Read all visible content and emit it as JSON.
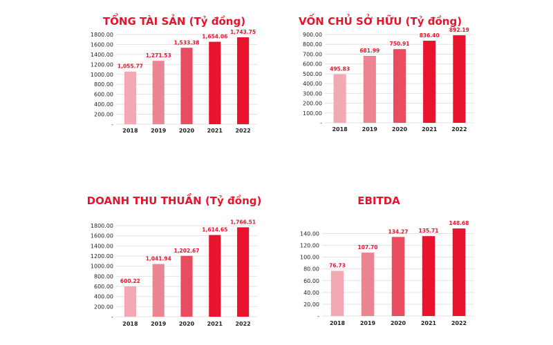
{
  "chart_data": [
    {
      "type": "bar",
      "title": "TỔNG TÀI SẢN (Tỷ đồng)",
      "categories": [
        "2018",
        "2019",
        "2020",
        "2021",
        "2022"
      ],
      "values": [
        1055.77,
        1271.53,
        1533.38,
        1654.06,
        1743.75
      ],
      "value_labels": [
        "1,055.77",
        "1,271.53",
        "1,533.38",
        "1,654.06",
        "1,743.75"
      ],
      "y_ticks": [
        "-",
        "200.00",
        "400.00",
        "600.00",
        "800.00",
        "1000.00",
        "1200.00",
        "1400.00",
        "1600.00",
        "1800.00"
      ],
      "ylim": [
        0,
        1800
      ],
      "grid": true
    },
    {
      "type": "bar",
      "title": "VỐN CHỦ SỞ HỮU (Tỷ đồng)",
      "categories": [
        "2018",
        "2019",
        "2020",
        "2021",
        "2022"
      ],
      "values": [
        495.83,
        681.99,
        750.91,
        836.4,
        892.19
      ],
      "value_labels": [
        "495.83",
        "681.99",
        "750.91",
        "836.40",
        "892.19"
      ],
      "y_ticks": [
        "-",
        "100.00",
        "200.00",
        "300.00",
        "400.00",
        "500.00",
        "600.00",
        "700.00",
        "800.00",
        "900.00"
      ],
      "ylim": [
        0,
        900
      ],
      "grid": true
    },
    {
      "type": "bar",
      "title": "DOANH THU THUẦN (Tỷ đồng)",
      "categories": [
        "2018",
        "2019",
        "2020",
        "2021",
        "2022"
      ],
      "values": [
        600.22,
        1041.94,
        1202.67,
        1614.65,
        1766.51
      ],
      "value_labels": [
        "600.22",
        "1,041.94",
        "1,202.67",
        "1,614.65",
        "1,766.51"
      ],
      "y_ticks": [
        "-",
        "200.00",
        "400.00",
        "600.00",
        "800.00",
        "1000.00",
        "1200.00",
        "1400.00",
        "1600.00",
        "1800.00"
      ],
      "ylim": [
        0,
        1800
      ],
      "grid": true
    },
    {
      "type": "bar",
      "title": "EBITDA",
      "categories": [
        "2018",
        "2019",
        "2020",
        "2021",
        "2022"
      ],
      "values": [
        76.73,
        107.7,
        134.27,
        135.71,
        148.68
      ],
      "value_labels": [
        "76.73",
        "107.70",
        "134.27",
        "135.71",
        "148.68"
      ],
      "y_ticks": [
        "-",
        "20.00",
        "40.00",
        "60.00",
        "80.00",
        "100.00",
        "120.00",
        "140.00"
      ],
      "ylim": [
        0,
        150
      ],
      "grid": true
    }
  ],
  "colors": {
    "title": "#e8132c",
    "data_label": "#e8132c",
    "bars": [
      "#f3a9b3",
      "#ec8591",
      "#e94b5f",
      "#e8132c",
      "#e8132c"
    ]
  }
}
